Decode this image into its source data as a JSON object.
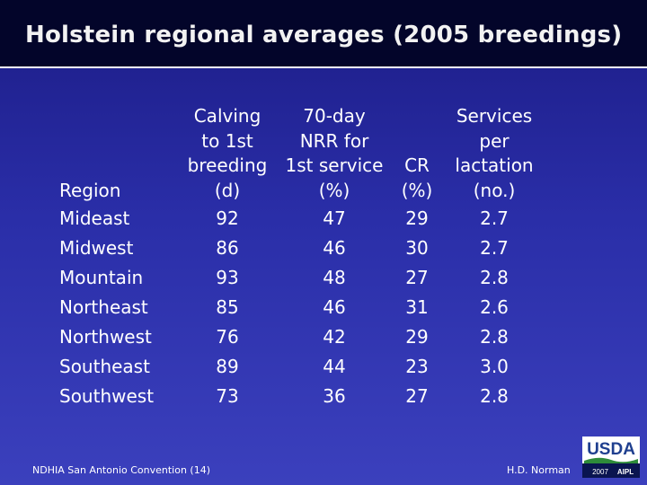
{
  "title": "Holstein regional averages (2005 breedings)",
  "table": {
    "headers": {
      "region": "Region",
      "calving": [
        "Calving",
        "to 1st",
        "breeding",
        "(d)"
      ],
      "nrr": [
        "70-day",
        "NRR for",
        "1st service",
        "(%)"
      ],
      "cr": [
        "CR",
        "(%)"
      ],
      "services": [
        "Services",
        "per",
        "lactation",
        "(no.)"
      ]
    },
    "rows": [
      {
        "region": "Mideast",
        "calving": "92",
        "nrr": "47",
        "cr": "29",
        "services": "2.7"
      },
      {
        "region": "Midwest",
        "calving": "86",
        "nrr": "46",
        "cr": "30",
        "services": "2.7"
      },
      {
        "region": "Mountain",
        "calving": "93",
        "nrr": "48",
        "cr": "27",
        "services": "2.8"
      },
      {
        "region": "Northeast",
        "calving": "85",
        "nrr": "46",
        "cr": "31",
        "services": "2.6"
      },
      {
        "region": "Northwest",
        "calving": "76",
        "nrr": "42",
        "cr": "29",
        "services": "2.8"
      },
      {
        "region": "Southeast",
        "calving": "89",
        "nrr": "44",
        "cr": "23",
        "services": "3.0"
      },
      {
        "region": "Southwest",
        "calving": "73",
        "nrr": "36",
        "cr": "27",
        "services": "2.8"
      }
    ]
  },
  "footer": {
    "left": "NDHIA San Antonio Convention (14)",
    "right": "H.D. Norman"
  },
  "logo": {
    "text": "USDA",
    "year": "2007",
    "mark": "AIPL"
  },
  "colors": {
    "title_bar": "#03052a",
    "background": "#2a2ea8",
    "logo_blue": "#1f3f8f",
    "logo_green": "#2e8b3a"
  }
}
